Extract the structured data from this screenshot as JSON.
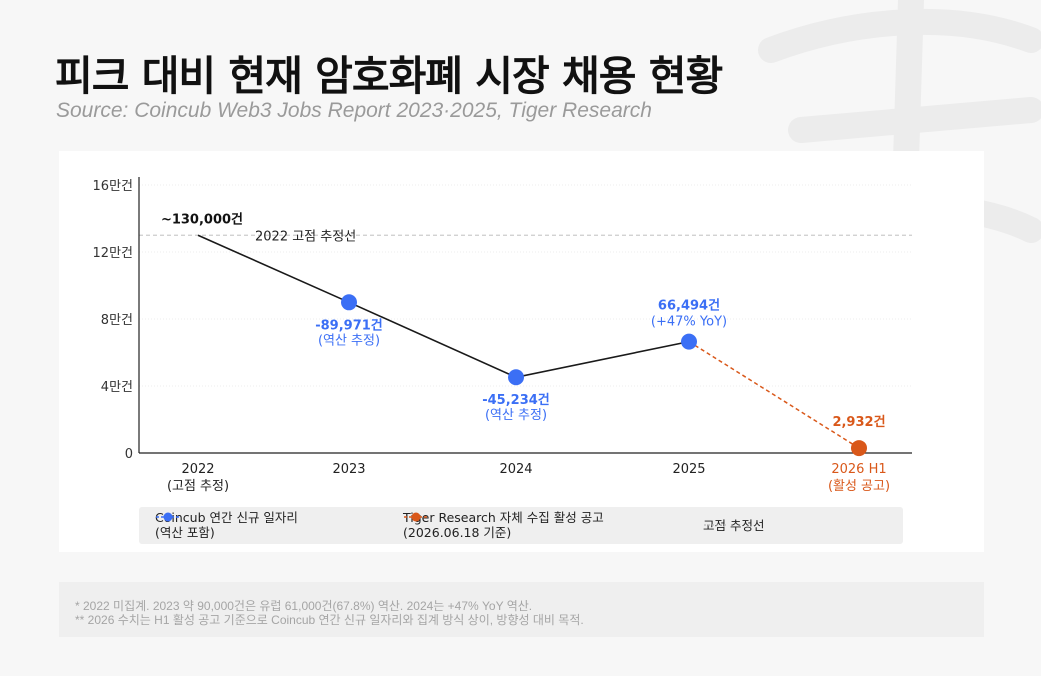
{
  "header": {
    "title": "피크 대비 현재 암호화폐 시장 채용 현황",
    "source": "Source: Coincub Web3 Jobs Report 2023·2025, Tiger Research"
  },
  "chart_data": {
    "type": "line",
    "y_ticks": [
      {
        "value": 0,
        "label": "0"
      },
      {
        "value": 40000,
        "label": "4만건"
      },
      {
        "value": 80000,
        "label": "8만건"
      },
      {
        "value": 120000,
        "label": "12만건"
      },
      {
        "value": 160000,
        "label": "16만건"
      }
    ],
    "ylim": [
      0,
      160000
    ],
    "categories": [
      {
        "label": "2022",
        "sublabel": "(고점 추정)",
        "color": "#222222"
      },
      {
        "label": "2023",
        "sublabel": "",
        "color": "#222222"
      },
      {
        "label": "2024",
        "sublabel": "",
        "color": "#222222"
      },
      {
        "label": "2025",
        "sublabel": "",
        "color": "#222222"
      },
      {
        "label": "2026 H1",
        "sublabel": "(활성 공고)",
        "color": "#d9581a"
      }
    ],
    "series": [
      {
        "name": "Coincub 연간 신규 일자리 (역산 포함)",
        "color": "#1a1a1a",
        "marker_color": "#3b6ff5",
        "points": [
          {
            "x": "2022",
            "y": 130000,
            "label": "~130,000건",
            "sublabel": "",
            "marker": false,
            "label_color": "#111111",
            "label_pos": "above-left"
          },
          {
            "x": "2023",
            "y": 89971,
            "label": "-89,971건",
            "sublabel": "(역산 추정)",
            "marker": true,
            "label_color": "#3b6ff5",
            "label_pos": "below"
          },
          {
            "x": "2024",
            "y": 45234,
            "label": "-45,234건",
            "sublabel": "(역산 추정)",
            "marker": true,
            "label_color": "#3b6ff5",
            "label_pos": "below"
          },
          {
            "x": "2025",
            "y": 66494,
            "label": "66,494건",
            "sublabel": "(+47% YoY)",
            "marker": true,
            "label_color": "#3b6ff5",
            "label_pos": "above"
          }
        ]
      },
      {
        "name": "Tiger Research 자체 수집 활성 공고 (2026.06.18 기준)",
        "color": "#d9581a",
        "dashed": true,
        "points": [
          {
            "x": "2025",
            "y": 66494,
            "label": "",
            "marker": false
          },
          {
            "x": "2026 H1",
            "y": 2932,
            "label": "2,932건",
            "sublabel": "",
            "marker": true,
            "label_color": "#d9581a",
            "label_pos": "above"
          }
        ]
      }
    ],
    "reference_line": {
      "y": 130000,
      "label": "2022 고점 추정선",
      "color": "#cccccc"
    },
    "grid": true,
    "legend": {
      "position": "bottom",
      "items": [
        {
          "line1": "Coincub 연간 신규 일자리",
          "line2": "(역산 포함)",
          "color": "#3b6ff5",
          "line_color": "#3b6ff5",
          "dashed": true,
          "marker": true
        },
        {
          "line1": "Tiger Research 자체 수집 활성 공고",
          "line2": "(2026.06.18 기준)",
          "color": "#d9581a",
          "line_color": "#d9581a",
          "dashed": true,
          "marker": true
        },
        {
          "line1": "고점 추정선",
          "line2": "",
          "color": "#bbbbbb",
          "line_color": "#bbbbbb",
          "dashed": true,
          "marker": false
        }
      ]
    }
  },
  "notes": [
    "* 2022 미집계. 2023 약 90,000건은 유럽 61,000건(67.8%) 역산. 2024는 +47% YoY 역산.",
    "** 2026 수치는 H1 활성 공고 기준으로 Coincub 연간 신규 일자리와 집계 방식 상이, 방향성 대비 목적."
  ]
}
